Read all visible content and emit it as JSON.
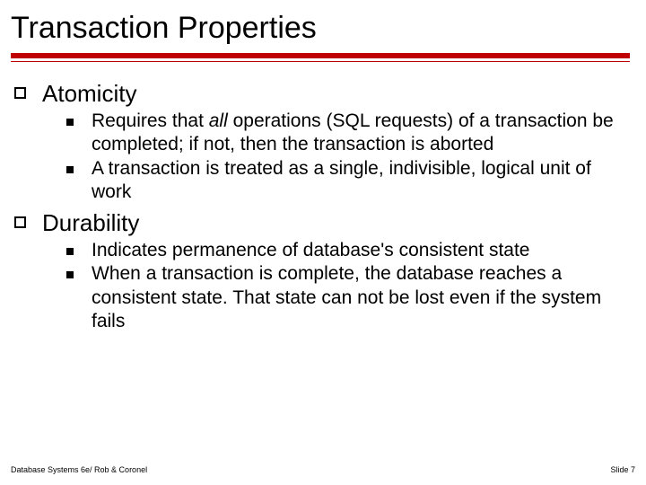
{
  "title": "Transaction Properties",
  "accent_color": "#c00000",
  "background_color": "#ffffff",
  "title_fontsize": 34,
  "l1_fontsize": 26,
  "l2_fontsize": 21,
  "sections": [
    {
      "heading": "Atomicity",
      "items": [
        {
          "pre": "Requires that ",
          "em": "all",
          "post": " operations (SQL requests) of a transaction be completed; if not, then the transaction is aborted"
        },
        {
          "text": "A transaction is treated as a single, indivisible, logical unit of work"
        }
      ]
    },
    {
      "heading": "Durability",
      "items": [
        {
          "text": "Indicates permanence of database's consistent state"
        },
        {
          "text": "When a transaction is complete, the database reaches a consistent state. That state can not be lost even if the system fails"
        }
      ]
    }
  ],
  "footer_left": "Database Systems 6e/ Rob & Coronel",
  "footer_right": "Slide 7"
}
